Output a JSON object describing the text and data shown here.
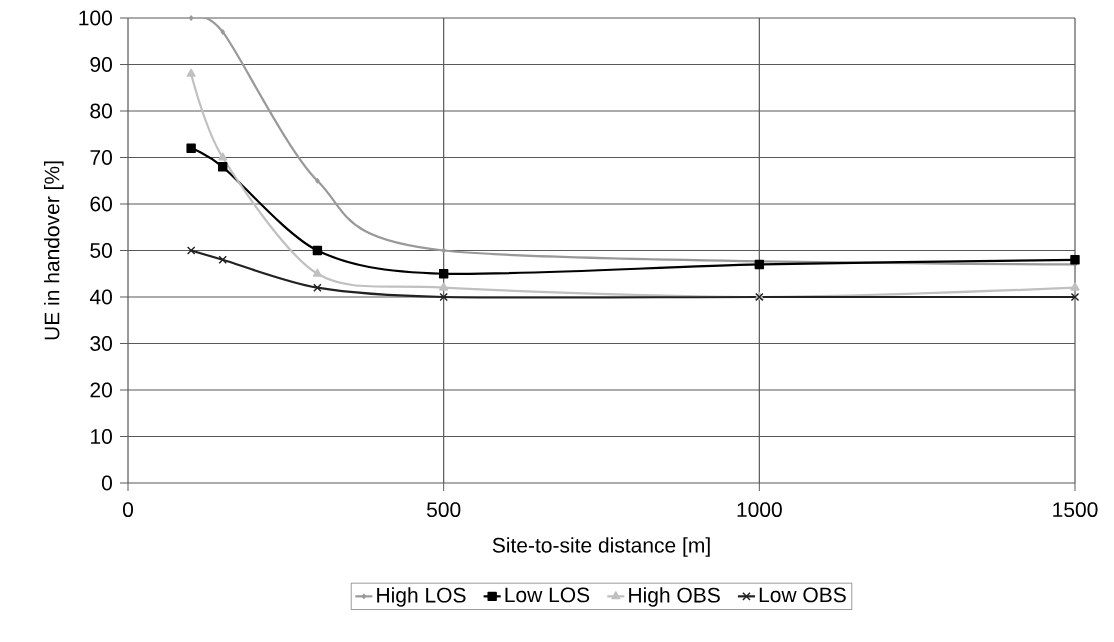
{
  "chart_data": {
    "type": "line",
    "xlabel": "Site-to-site distance [m]",
    "ylabel": "UE in handover [%]",
    "x": [
      100,
      150,
      300,
      500,
      1000,
      1500
    ],
    "series": [
      {
        "name": "High LOS",
        "color": "#999999",
        "marker": "diamond",
        "values": [
          100,
          97,
          65,
          50,
          null,
          47
        ]
      },
      {
        "name": "Low LOS",
        "color": "#000000",
        "marker": "square",
        "values": [
          72,
          68,
          50,
          45,
          47,
          48
        ]
      },
      {
        "name": "High OBS",
        "color": "#c0c0c0",
        "marker": "triangle",
        "values": [
          88,
          70,
          45,
          42,
          40,
          42
        ]
      },
      {
        "name": "Low OBS",
        "color": "#222222",
        "marker": "cross",
        "values": [
          50,
          48,
          42,
          40,
          40,
          40
        ]
      }
    ],
    "xlim": [
      0,
      1500
    ],
    "xticks": [
      0,
      500,
      1000,
      1500
    ],
    "ylim": [
      0,
      100
    ],
    "yticks": [
      0,
      10,
      20,
      30,
      40,
      50,
      60,
      70,
      80,
      90,
      100
    ],
    "grid": true,
    "legend": "bottom",
    "line_style": "solid"
  }
}
